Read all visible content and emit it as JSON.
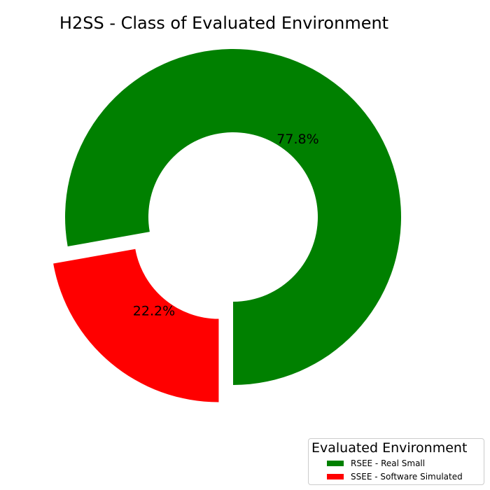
{
  "chart_data": {
    "type": "pie",
    "title": "H2SS - Class of Evaluated Environment",
    "legend_title": "Evaluated Environment",
    "legend_position": "lower-right",
    "donut": true,
    "exploded": true,
    "categories": [
      "RSEE - Real Small",
      "SSEE - Software Simulated"
    ],
    "values": [
      77.8,
      22.2
    ],
    "labels": [
      "77.8%",
      "22.2%"
    ],
    "colors": [
      "#008000",
      "#ff0000"
    ]
  }
}
